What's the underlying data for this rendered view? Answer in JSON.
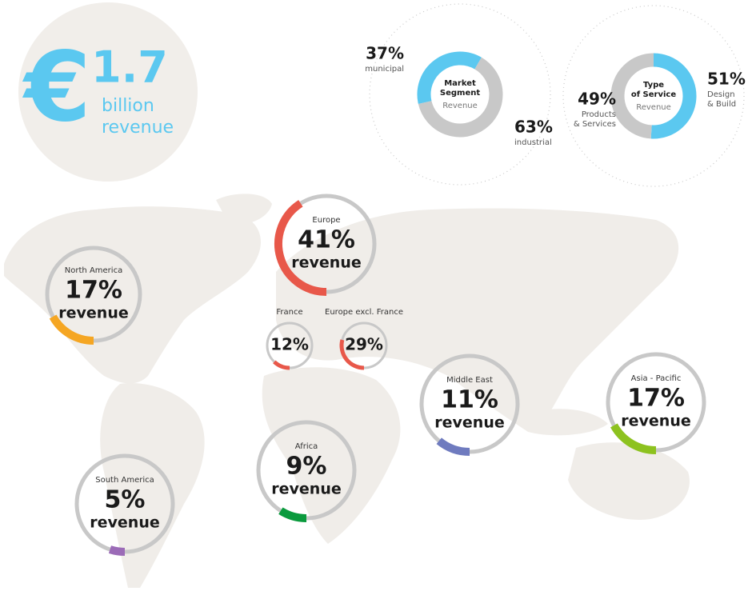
{
  "headline": {
    "currency": "€",
    "amount": "1.7",
    "unit": "billion",
    "label": "revenue"
  },
  "segments": [
    {
      "title_lines": [
        "Market",
        "Segment"
      ],
      "subtitle": "Revenue",
      "slices": [
        {
          "value": 37,
          "value_label": "37%",
          "name_lines": [
            "municipal"
          ],
          "color": "#5bc8f0"
        },
        {
          "value": 63,
          "value_label": "63%",
          "name_lines": [
            "industrial"
          ],
          "color": "#c8c8c8"
        }
      ]
    },
    {
      "title_lines": [
        "Type",
        "of Service"
      ],
      "subtitle": "Revenue",
      "slices": [
        {
          "value": 51,
          "value_label": "51%",
          "name_lines": [
            "Design",
            "& Build"
          ],
          "color": "#5bc8f0"
        },
        {
          "value": 49,
          "value_label": "49%",
          "name_lines": [
            "Products",
            "& Services"
          ],
          "color": "#c8c8c8"
        }
      ]
    }
  ],
  "regions": [
    {
      "name": "Europe",
      "value": 41,
      "value_label": "41%",
      "caption": "revenue",
      "color": "#e8584a"
    },
    {
      "name": "North America",
      "value": 17,
      "value_label": "17%",
      "caption": "revenue",
      "color": "#f5a623"
    },
    {
      "name": "France",
      "value": 12,
      "value_label": "12%",
      "color": "#e8584a"
    },
    {
      "name": "Europe excl. France",
      "value": 29,
      "value_label": "29%",
      "color": "#e8584a"
    },
    {
      "name": "Middle East",
      "value": 11,
      "value_label": "11%",
      "caption": "revenue",
      "color": "#6f7bbf"
    },
    {
      "name": "Asia - Pacific",
      "value": 17,
      "value_label": "17%",
      "caption": "revenue",
      "color": "#8dc21f"
    },
    {
      "name": "Africa",
      "value": 9,
      "value_label": "9%",
      "caption": "revenue",
      "color": "#0a9a3d"
    },
    {
      "name": "South America",
      "value": 5,
      "value_label": "5%",
      "caption": "revenue",
      "color": "#9b6bb7"
    }
  ]
}
